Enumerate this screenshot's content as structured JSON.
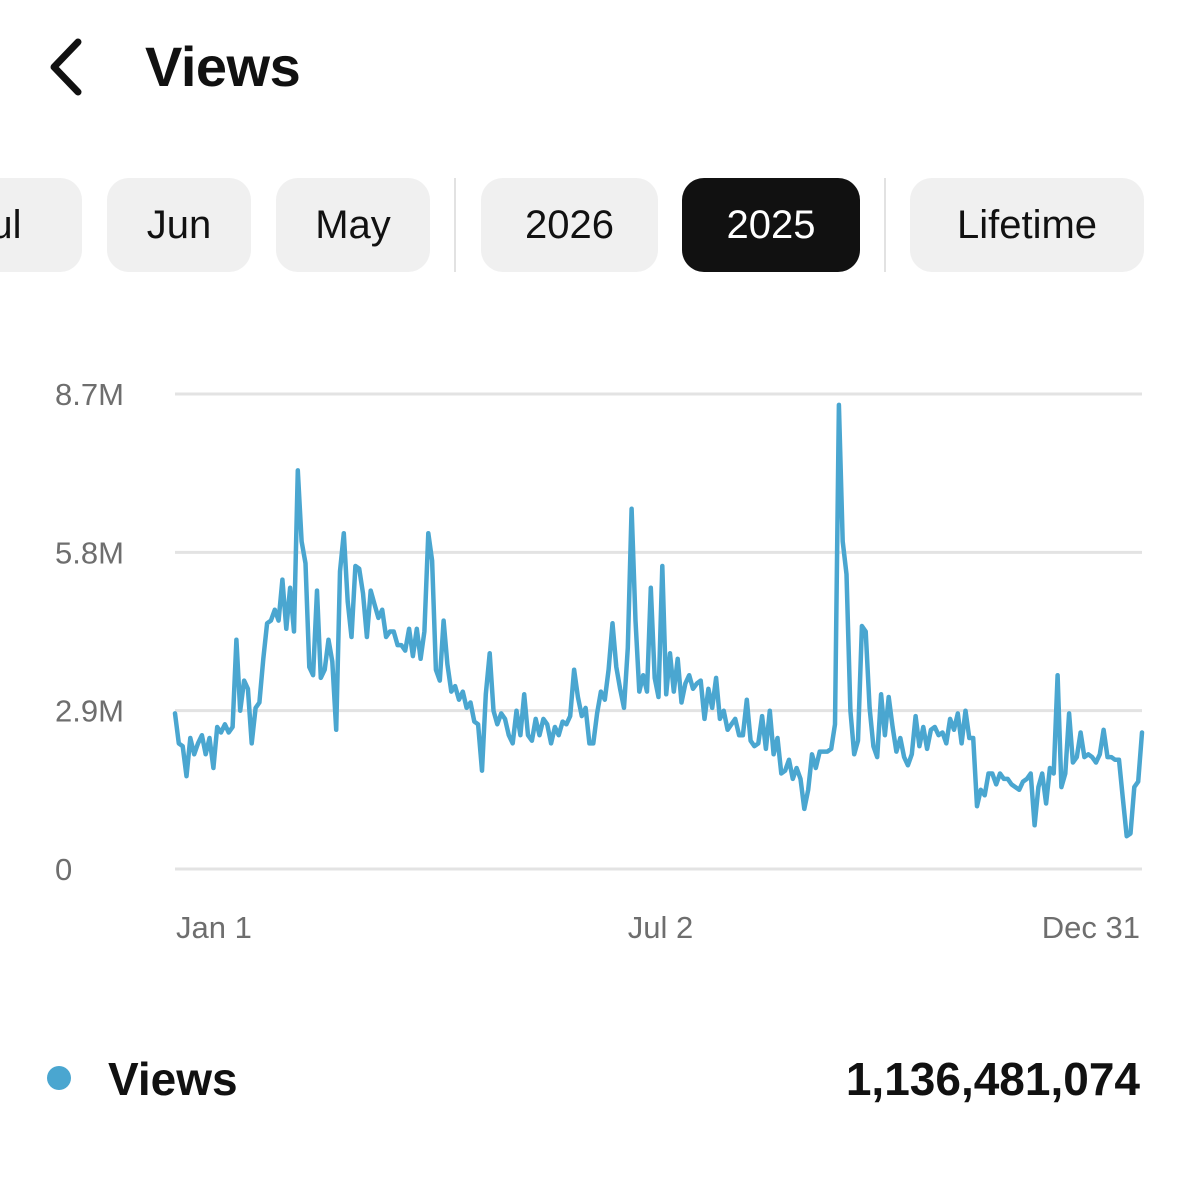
{
  "header": {
    "title": "Views",
    "back_icon": "chevron-left-icon"
  },
  "period_chips": [
    {
      "label": "Jul",
      "selected": false
    },
    {
      "label": "Jun",
      "selected": false
    },
    {
      "label": "May",
      "selected": false
    },
    {
      "label": "2026",
      "selected": false
    },
    {
      "label": "2025",
      "selected": true
    },
    {
      "label": "Lifetime",
      "selected": false
    }
  ],
  "colors": {
    "accent": "#4aa6d0",
    "selected_chip": "#111111",
    "chip": "#f0f0f0",
    "grid": "#e3e3e3",
    "axis_text": "#6e6e6e"
  },
  "chart_data": {
    "type": "line",
    "title": "",
    "xlabel": "",
    "ylabel": "",
    "x_ticks": [
      "Jan 1",
      "Jul 2",
      "Dec 31"
    ],
    "y_ticks": [
      "0",
      "2.9M",
      "5.8M",
      "8.7M"
    ],
    "ylim": [
      0,
      8.7
    ],
    "grid": true,
    "series": [
      {
        "name": "Views",
        "y_unit": "M",
        "x_range": [
          "2025-01-01",
          "2025-12-31"
        ],
        "values": [
          2.85,
          2.3,
          2.25,
          1.7,
          2.4,
          2.1,
          2.3,
          2.45,
          2.1,
          2.4,
          1.85,
          2.6,
          2.5,
          2.65,
          2.5,
          2.6,
          4.2,
          2.9,
          3.45,
          3.3,
          2.3,
          2.95,
          3.05,
          3.85,
          4.5,
          4.55,
          4.75,
          4.55,
          5.3,
          4.4,
          5.15,
          4.35,
          7.3,
          6.0,
          5.6,
          3.7,
          3.55,
          5.1,
          3.5,
          3.65,
          4.2,
          3.8,
          2.55,
          5.45,
          6.15,
          4.9,
          4.25,
          5.55,
          5.5,
          5.05,
          4.25,
          5.1,
          4.85,
          4.6,
          4.75,
          4.25,
          4.35,
          4.35,
          4.1,
          4.1,
          4.0,
          4.4,
          3.9,
          4.4,
          3.85,
          4.35,
          6.15,
          5.65,
          3.65,
          3.45,
          4.55,
          3.75,
          3.25,
          3.35,
          3.1,
          3.25,
          2.95,
          3.05,
          2.7,
          2.65,
          1.8,
          3.2,
          3.95,
          2.9,
          2.65,
          2.85,
          2.75,
          2.45,
          2.3,
          2.9,
          2.45,
          3.2,
          2.45,
          2.35,
          2.75,
          2.45,
          2.75,
          2.65,
          2.3,
          2.6,
          2.45,
          2.7,
          2.65,
          2.8,
          3.65,
          3.15,
          2.8,
          2.95,
          2.3,
          2.3,
          2.85,
          3.25,
          3.1,
          3.65,
          4.5,
          3.7,
          3.3,
          2.95,
          4.05,
          6.6,
          4.55,
          3.25,
          3.55,
          3.25,
          5.15,
          3.5,
          3.15,
          5.55,
          3.2,
          3.95,
          3.25,
          3.85,
          3.05,
          3.4,
          3.55,
          3.3,
          3.4,
          3.45,
          2.75,
          3.3,
          2.95,
          3.5,
          2.75,
          2.9,
          2.55,
          2.65,
          2.75,
          2.45,
          2.45,
          3.1,
          2.35,
          2.25,
          2.3,
          2.8,
          2.2,
          2.9,
          2.1,
          2.4,
          1.75,
          1.8,
          2.0,
          1.65,
          1.85,
          1.65,
          1.1,
          1.45,
          2.1,
          1.85,
          2.15,
          2.15,
          2.15,
          2.2,
          2.65,
          8.5,
          6.0,
          5.4,
          2.9,
          2.1,
          2.35,
          4.45,
          4.35,
          2.95,
          2.25,
          2.05,
          3.2,
          2.45,
          3.15,
          2.6,
          2.15,
          2.4,
          2.05,
          1.9,
          2.1,
          2.8,
          2.25,
          2.6,
          2.2,
          2.55,
          2.6,
          2.45,
          2.5,
          2.3,
          2.75,
          2.55,
          2.85,
          2.3,
          2.9,
          2.4,
          2.4,
          1.15,
          1.45,
          1.35,
          1.75,
          1.75,
          1.55,
          1.75,
          1.65,
          1.65,
          1.55,
          1.5,
          1.45,
          1.6,
          1.65,
          1.75,
          0.8,
          1.5,
          1.75,
          1.2,
          1.85,
          1.75,
          3.55,
          1.5,
          1.75,
          2.85,
          1.95,
          2.05,
          2.5,
          2.05,
          2.1,
          2.05,
          1.95,
          2.1,
          2.55,
          2.05,
          2.05,
          2.0,
          2.0,
          1.3,
          0.6,
          0.65,
          1.5,
          1.6,
          2.5
        ]
      }
    ]
  },
  "legend": {
    "label": "Views",
    "total": "1,136,481,074"
  }
}
